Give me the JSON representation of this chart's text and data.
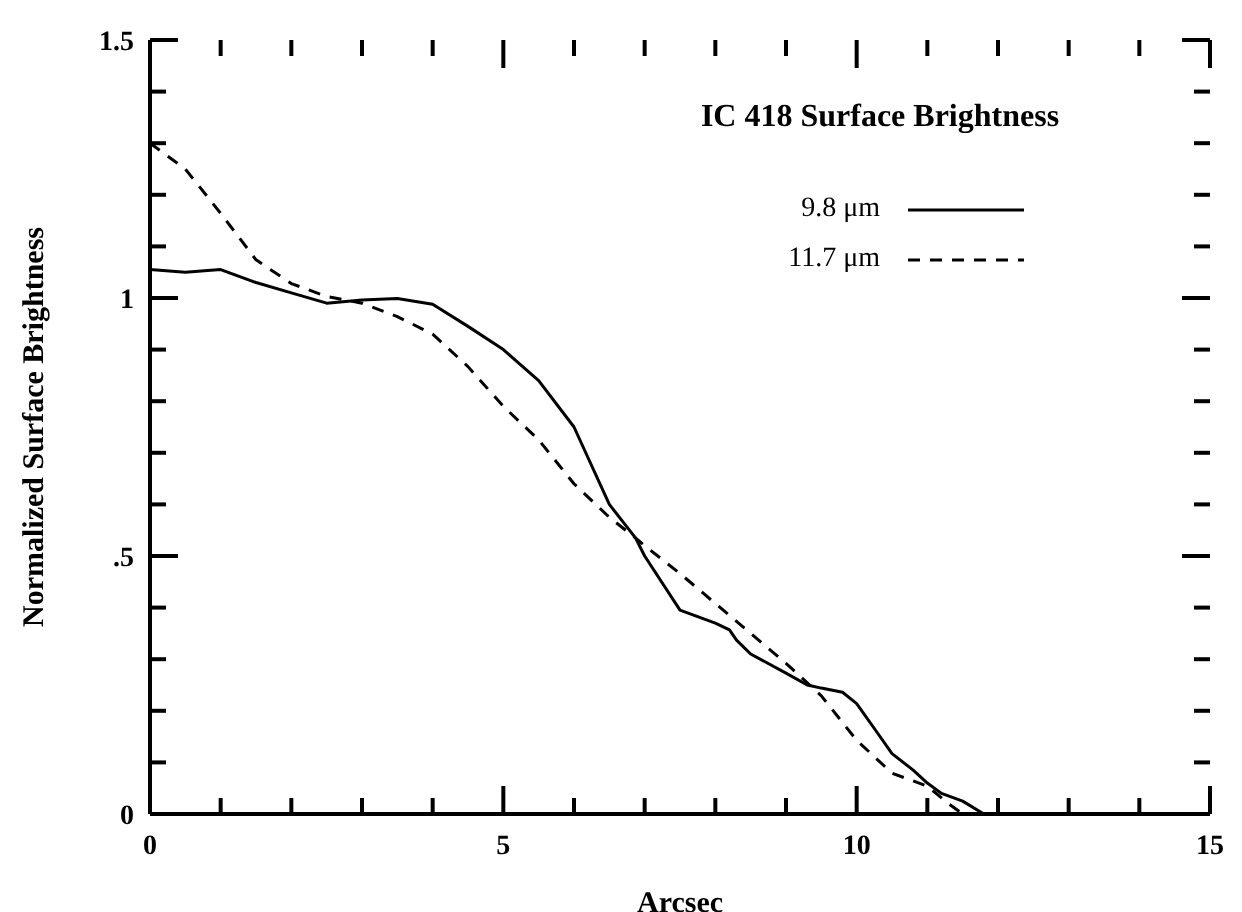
{
  "chart_data": {
    "type": "line",
    "title": "IC 418 Surface Brightness",
    "xlabel": "Arcsec",
    "ylabel": "Normalized Surface Brightness",
    "xlim": [
      0,
      15
    ],
    "ylim": [
      0,
      1.5
    ],
    "xticks": [
      0,
      {
        "value": 1,
        "label": null
      },
      {
        "value": 2,
        "label": null
      },
      {
        "value": 3,
        "label": null
      },
      {
        "value": 4,
        "label": null
      },
      5,
      {
        "value": 6,
        "label": null
      },
      {
        "value": 7,
        "label": null
      },
      {
        "value": 8,
        "label": null
      },
      {
        "value": 9,
        "label": null
      },
      10,
      {
        "value": 11,
        "label": null
      },
      {
        "value": 12,
        "label": null
      },
      {
        "value": 13,
        "label": null
      },
      {
        "value": 14,
        "label": null
      },
      15
    ],
    "yticks": [
      0,
      {
        "value": 0.1,
        "label": null
      },
      {
        "value": 0.2,
        "label": null
      },
      {
        "value": 0.3,
        "label": null
      },
      {
        "value": 0.4,
        "label": null
      },
      {
        "value": 0.5,
        "label": ".5"
      },
      {
        "value": 0.6,
        "label": null
      },
      {
        "value": 0.7,
        "label": null
      },
      {
        "value": 0.8,
        "label": null
      },
      {
        "value": 0.9,
        "label": null
      },
      1,
      {
        "value": 1.1,
        "label": null
      },
      {
        "value": 1.2,
        "label": null
      },
      {
        "value": 1.3,
        "label": null
      },
      {
        "value": 1.4,
        "label": null
      },
      1.5
    ],
    "legend": "top right",
    "marker": "none",
    "series": [
      {
        "name": "9.8 μm",
        "color": "#000000",
        "line_style": "solid",
        "x": [
          0,
          0.5,
          1,
          1.5,
          2,
          2.5,
          3,
          3.5,
          4,
          4.5,
          5,
          5.5,
          6,
          6.5,
          6.87,
          7,
          7.5,
          8,
          8.2,
          8.3,
          8.5,
          9,
          9.3,
          9.5,
          9.8,
          10,
          10.3,
          10.5,
          10.8,
          11,
          11.2,
          11.5,
          11.8
        ],
        "values": [
          1.055,
          1.05,
          1.055,
          1.03,
          1.01,
          0.99,
          0.996,
          0.999,
          0.988,
          0.945,
          0.9,
          0.84,
          0.75,
          0.6,
          0.535,
          0.5,
          0.395,
          0.37,
          0.357,
          0.337,
          0.31,
          0.273,
          0.25,
          0.244,
          0.236,
          0.214,
          0.156,
          0.117,
          0.085,
          0.06,
          0.04,
          0.025,
          0
        ]
      },
      {
        "name": "11.7 μm",
        "color": "#000000",
        "line_style": "dashed",
        "x": [
          0,
          0.5,
          1,
          1.5,
          2,
          2.5,
          3,
          3.5,
          4,
          4.5,
          5,
          5.5,
          6,
          6.5,
          6.87,
          7,
          7.5,
          8,
          8.5,
          9,
          9.5,
          10,
          10.5,
          11,
          11.3,
          11.5
        ],
        "values": [
          1.3,
          1.25,
          1.164,
          1.074,
          1.028,
          1.003,
          0.99,
          0.964,
          0.93,
          0.867,
          0.79,
          0.725,
          0.64,
          0.575,
          0.535,
          0.52,
          0.466,
          0.408,
          0.35,
          0.292,
          0.229,
          0.143,
          0.079,
          0.054,
          0.02,
          0
        ]
      }
    ]
  }
}
